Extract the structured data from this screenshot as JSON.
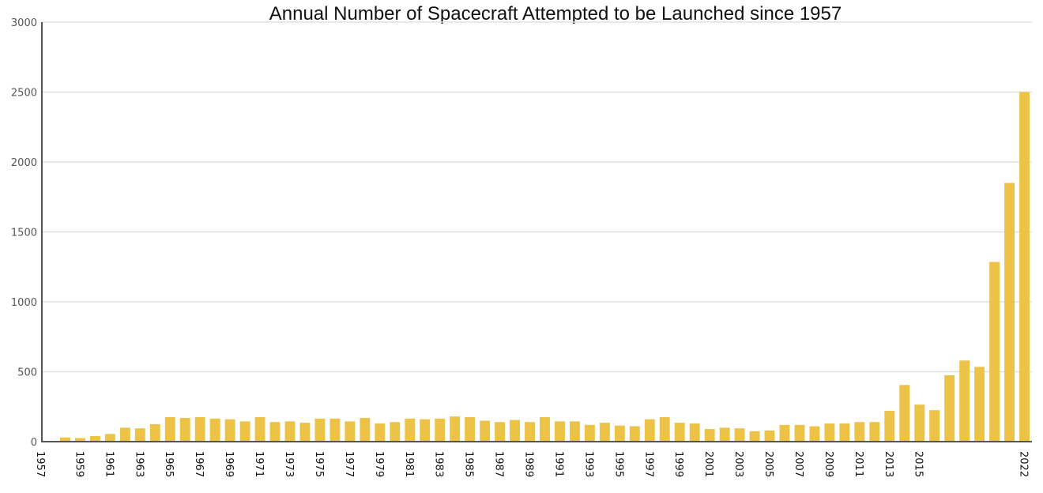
{
  "chart_data": {
    "type": "bar",
    "title": "Annual Number of Spacecraft Attempted to be Launched since 1957",
    "xlabel": "",
    "ylabel": "",
    "ylim": [
      0,
      3000
    ],
    "yticks": [
      "0",
      "500",
      "1000",
      "1500",
      "2000",
      "2500",
      "3000"
    ],
    "grid": true,
    "bar_color": "#ecc247",
    "categories": [
      1957,
      1958,
      1959,
      1960,
      1961,
      1962,
      1963,
      1964,
      1965,
      1966,
      1967,
      1968,
      1969,
      1970,
      1971,
      1972,
      1973,
      1974,
      1975,
      1976,
      1977,
      1978,
      1979,
      1980,
      1981,
      1982,
      1983,
      1984,
      1985,
      1986,
      1987,
      1988,
      1989,
      1990,
      1991,
      1992,
      1993,
      1994,
      1995,
      1996,
      1997,
      1998,
      1999,
      2000,
      2001,
      2002,
      2003,
      2004,
      2005,
      2006,
      2007,
      2008,
      2009,
      2010,
      2011,
      2012,
      2013,
      2014,
      2015,
      2016,
      2017,
      2018,
      2019,
      2020,
      2021,
      2022
    ],
    "x_tick_labels": [
      "1957",
      "1959",
      "1961",
      "1963",
      "1965",
      "1967",
      "1969",
      "1971",
      "1973",
      "1975",
      "1977",
      "1979",
      "1981",
      "1983",
      "1985",
      "1987",
      "1989",
      "1991",
      "1993",
      "1995",
      "1997",
      "1999",
      "2001",
      "2003",
      "2005",
      "2007",
      "2009",
      "2011",
      "2013",
      "2015",
      "2022"
    ],
    "values": [
      0,
      30,
      25,
      40,
      55,
      100,
      95,
      125,
      175,
      170,
      175,
      165,
      160,
      145,
      175,
      140,
      145,
      135,
      165,
      165,
      145,
      170,
      130,
      140,
      165,
      160,
      165,
      180,
      175,
      150,
      140,
      155,
      140,
      175,
      145,
      145,
      120,
      135,
      115,
      110,
      160,
      175,
      135,
      130,
      90,
      100,
      95,
      75,
      80,
      120,
      120,
      110,
      130,
      130,
      140,
      140,
      220,
      405,
      265,
      225,
      475,
      580,
      535,
      1285,
      1850,
      2500
    ]
  }
}
